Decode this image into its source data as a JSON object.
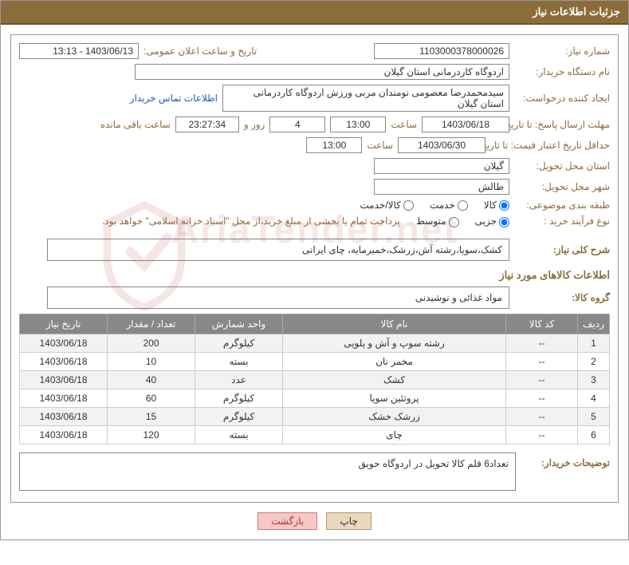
{
  "panel": {
    "title": "جزئیات اطلاعات نیاز"
  },
  "form": {
    "request_no_label": "شماره نیاز:",
    "request_no": "1103000378000026",
    "announce_label": "تاریخ و ساعت اعلان عمومی:",
    "announce_value": "1403/06/13 - 13:13",
    "buyer_org_label": "نام دستگاه خریدار:",
    "buyer_org": "اردوگاه کاردرمانی استان گیلان",
    "requester_label": "ایجاد کننده درخواست:",
    "requester": "سیدمحمدرضا معصومی نومندان مربی ورزش اردوگاه کاردرمانی استان گیلان",
    "contact_link": "اطلاعات تماس خریدار",
    "deadline_label": "مهلت ارسال پاسخ: تا تاریخ:",
    "deadline_date": "1403/06/18",
    "time_label": "ساعت",
    "deadline_time": "13:00",
    "days_value": "4",
    "days_and": "روز و",
    "countdown": "23:27:34",
    "remain_label": "ساعت باقی مانده",
    "validity_label": "حداقل تاریخ اعتبار قیمت: تا تاریخ:",
    "validity_date": "1403/06/30",
    "validity_time": "13:00",
    "delivery_prov_label": "استان محل تحویل:",
    "delivery_prov": "گیلان",
    "delivery_city_label": "شهر محل تحویل:",
    "delivery_city": "طالش",
    "category_label": "طبقه بندی موضوعی:",
    "cat_goods": "کالا",
    "cat_service": "خدمت",
    "cat_both": "کالا/خدمت",
    "process_label": "نوع فرآیند خرید :",
    "proc_small": "جزیی",
    "proc_medium": "متوسط",
    "payment_note": "پرداخت تمام یا بخشی از مبلغ خرید،از محل \"اسناد خزانه اسلامی\" خواهد بود.",
    "overall_label": "شرح کلی نیاز:",
    "overall_desc": "کشک،سویا،رشته آش،زرشک،خمیرمایه، چای ایرانی",
    "items_title": "اطلاعات کالاهای مورد نیاز",
    "group_label": "گروه کالا:",
    "group_value": "مواد غذائی و نوشیدنی",
    "buyer_notes_label": "توضیحات خریدار:",
    "buyer_notes": "تعداد6 قلم کالا تحویل در اردوگاه حویق"
  },
  "table": {
    "headers": {
      "row": "ردیف",
      "code": "کد کالا",
      "name": "نام کالا",
      "unit": "واحد شمارش",
      "qty": "تعداد / مقدار",
      "date": "تاریخ نیاز"
    },
    "rows": [
      {
        "n": "1",
        "code": "--",
        "name": "رشته سوپ و آش و پلویی",
        "unit": "کیلوگرم",
        "qty": "200",
        "date": "1403/06/18"
      },
      {
        "n": "2",
        "code": "--",
        "name": "مخمر نان",
        "unit": "بسته",
        "qty": "10",
        "date": "1403/06/18"
      },
      {
        "n": "3",
        "code": "--",
        "name": "کشک",
        "unit": "عدد",
        "qty": "40",
        "date": "1403/06/18"
      },
      {
        "n": "4",
        "code": "--",
        "name": "پروتئین سویا",
        "unit": "کیلوگرم",
        "qty": "60",
        "date": "1403/06/18"
      },
      {
        "n": "5",
        "code": "--",
        "name": "زرشک خشک",
        "unit": "کیلوگرم",
        "qty": "15",
        "date": "1403/06/18"
      },
      {
        "n": "6",
        "code": "--",
        "name": "چای",
        "unit": "بسته",
        "qty": "120",
        "date": "1403/06/18"
      }
    ],
    "col_widths": {
      "row": "40px",
      "code": "90px",
      "name": "auto",
      "unit": "110px",
      "qty": "110px",
      "date": "110px"
    }
  },
  "buttons": {
    "print": "چاپ",
    "back": "بازگشت"
  },
  "watermark": "AriaTender.net",
  "colors": {
    "header_bg": "#8a6d3b",
    "label_color": "#8a6d3b",
    "th_bg": "#888888",
    "link": "#1a5eb8"
  }
}
